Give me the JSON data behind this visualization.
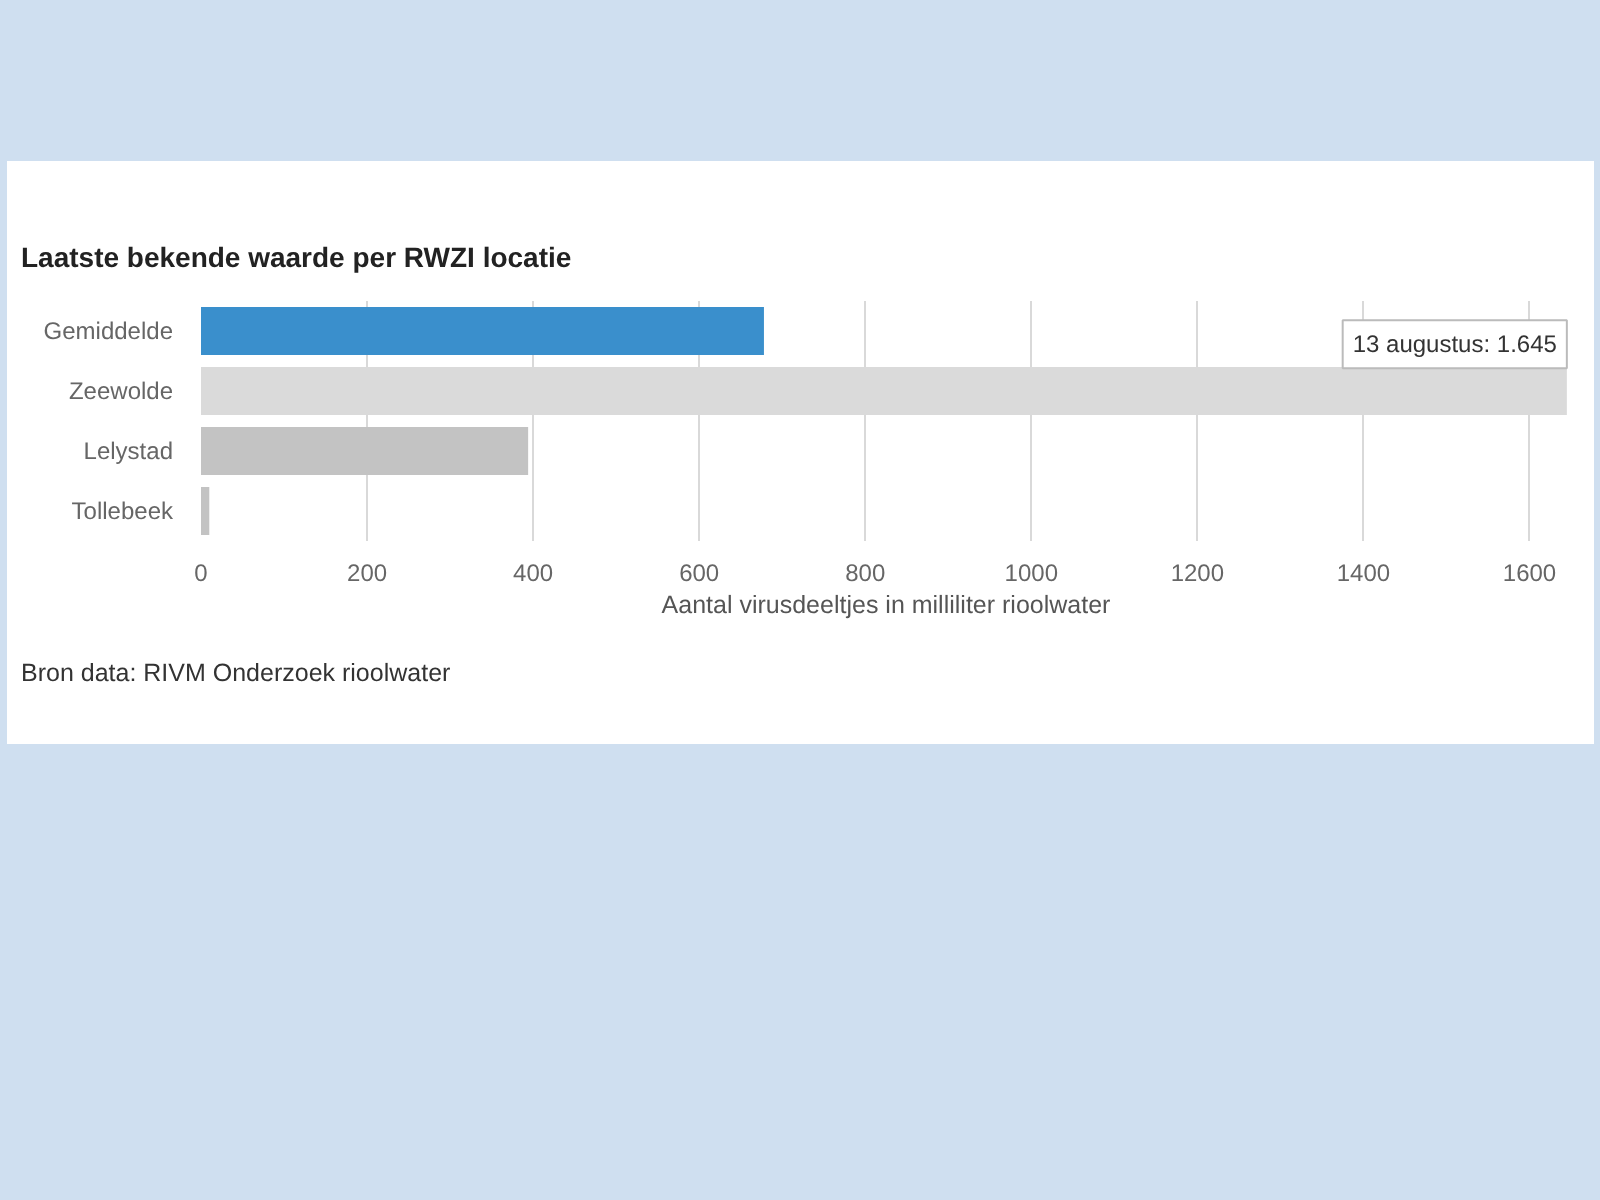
{
  "chart_data": {
    "type": "bar",
    "orientation": "horizontal",
    "title": "Laatste bekende waarde per RWZI locatie",
    "xlabel": "Aantal virusdeeltjes in milliliter rioolwater",
    "categories": [
      "Gemiddelde",
      "Zeewolde",
      "Lelystad",
      "Tollebeek"
    ],
    "values": [
      678,
      1645,
      394,
      10
    ],
    "colors": [
      "#3a8fcc",
      "#dadada",
      "#c3c3c3",
      "#c3c3c3"
    ],
    "xlim": [
      0,
      1650
    ],
    "xticks": [
      0,
      200,
      400,
      600,
      800,
      1000,
      1200,
      1400,
      1600
    ],
    "grid": "x",
    "annotations": [
      {
        "text": "13 augustus: 1.645",
        "x": 1645,
        "y": "Zeewolde"
      },
      "Bron data: RIVM Onderzoek rioolwater"
    ]
  }
}
